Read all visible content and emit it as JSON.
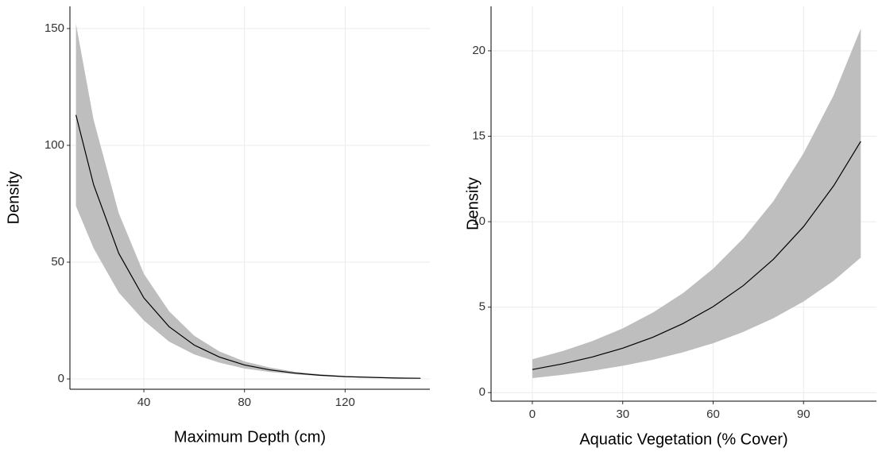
{
  "chart_data": [
    {
      "type": "line",
      "xlabel": "Maximum Depth (cm)",
      "ylabel": "Density",
      "x": [
        13,
        20,
        30,
        40,
        50,
        60,
        70,
        80,
        90,
        100,
        110,
        120,
        130,
        140,
        150
      ],
      "values": [
        113,
        83.2,
        53.8,
        34.7,
        22.4,
        14.5,
        9.4,
        6.0,
        3.9,
        2.5,
        1.6,
        1.0,
        0.7,
        0.4,
        0.3
      ],
      "lower": [
        74,
        56,
        37,
        25,
        16,
        10.5,
        7,
        4.5,
        3,
        2,
        1.3,
        0.8,
        0.5,
        0.3,
        0.2
      ],
      "upper": [
        152,
        111,
        71,
        45,
        29,
        18.5,
        11.8,
        7.5,
        4.9,
        3.1,
        2,
        1.3,
        0.9,
        0.6,
        0.4
      ],
      "color": "#000000",
      "band_color": "#bebebe",
      "xlim": [
        10.6,
        153.7
      ],
      "ylim": [
        -4.4,
        159.5
      ],
      "xticks": [
        40,
        80,
        120
      ],
      "yticks": [
        0,
        50,
        100,
        150
      ],
      "grid": true
    },
    {
      "type": "line",
      "xlabel": "Aquatic Vegetation (% Cover)",
      "ylabel": "Density",
      "x": [
        0,
        10,
        20,
        30,
        40,
        50,
        60,
        70,
        80,
        90,
        100,
        109
      ],
      "values": [
        1.35,
        1.68,
        2.09,
        2.6,
        3.24,
        4.04,
        5.03,
        6.26,
        7.8,
        9.71,
        12.1,
        14.7
      ],
      "lower": [
        0.85,
        1.04,
        1.28,
        1.57,
        1.92,
        2.36,
        2.89,
        3.55,
        4.35,
        5.33,
        6.54,
        7.9
      ],
      "upper": [
        1.95,
        2.43,
        3.02,
        3.76,
        4.68,
        5.82,
        7.25,
        9.02,
        11.2,
        14.0,
        17.4,
        21.3
      ],
      "color": "#000000",
      "band_color": "#bebebe",
      "xlim": [
        -13.7,
        114.2
      ],
      "ylim": [
        -0.5,
        22.6
      ],
      "xticks": [
        0,
        30,
        60,
        90
      ],
      "yticks": [
        0,
        5,
        10,
        15,
        20
      ],
      "grid": true
    }
  ]
}
